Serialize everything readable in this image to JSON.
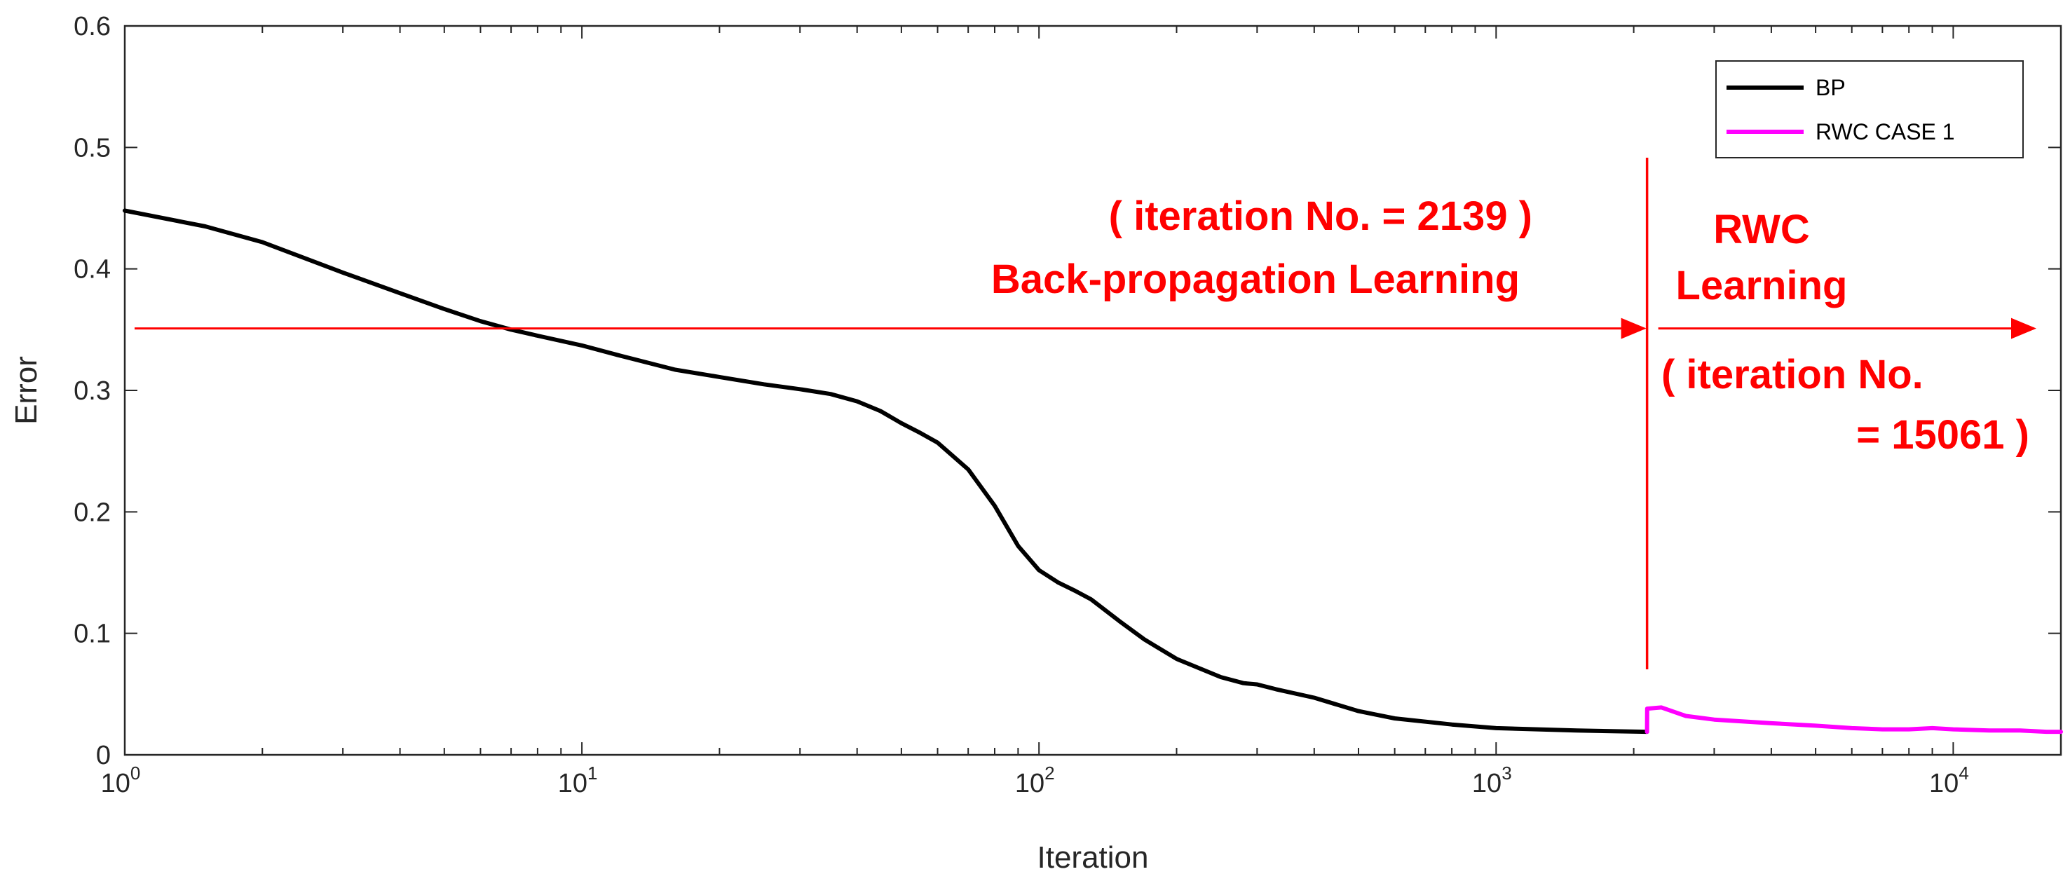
{
  "chart_data": {
    "type": "line",
    "xlabel": "Iteration",
    "ylabel": "Error",
    "xscale": "log",
    "xlim": [
      1,
      17200
    ],
    "ylim": [
      0,
      0.6
    ],
    "yticks": [
      "0",
      "0.1",
      "0.2",
      "0.3",
      "0.4",
      "0.5",
      "0.6"
    ],
    "xticks": [
      {
        "value": 1,
        "base": "10",
        "exp": "0"
      },
      {
        "value": 10,
        "base": "10",
        "exp": "1"
      },
      {
        "value": 100,
        "base": "10",
        "exp": "2"
      },
      {
        "value": 1000,
        "base": "10",
        "exp": "3"
      },
      {
        "value": 10000,
        "base": "10",
        "exp": "4"
      }
    ],
    "grid": false,
    "legend_position": "top-right",
    "series": [
      {
        "name": "BP",
        "color": "#000000",
        "x": [
          1,
          1.5,
          2,
          3,
          4,
          5,
          6,
          7,
          8,
          10,
          12,
          16,
          20,
          25,
          30,
          35,
          40,
          45,
          50,
          55,
          60,
          70,
          80,
          90,
          100,
          110,
          120,
          130,
          150,
          170,
          200,
          250,
          280,
          300,
          330,
          400,
          500,
          600,
          800,
          1000,
          1500,
          2139
        ],
        "values": [
          0.448,
          0.435,
          0.422,
          0.397,
          0.38,
          0.367,
          0.357,
          0.35,
          0.345,
          0.337,
          0.329,
          0.317,
          0.311,
          0.305,
          0.301,
          0.297,
          0.291,
          0.283,
          0.273,
          0.265,
          0.257,
          0.235,
          0.205,
          0.172,
          0.152,
          0.142,
          0.135,
          0.128,
          0.11,
          0.095,
          0.079,
          0.064,
          0.059,
          0.058,
          0.054,
          0.047,
          0.036,
          0.03,
          0.025,
          0.022,
          0.02,
          0.019
        ]
      },
      {
        "name": "RWC CASE 1",
        "color": "#ff00ff",
        "x": [
          2139,
          2140,
          2300,
          2600,
          3000,
          4000,
          5000,
          6000,
          7000,
          8000,
          9000,
          10000,
          12000,
          14000,
          16000,
          17200
        ],
        "values": [
          0.019,
          0.038,
          0.039,
          0.032,
          0.029,
          0.026,
          0.024,
          0.022,
          0.021,
          0.021,
          0.022,
          0.021,
          0.02,
          0.02,
          0.019,
          0.019
        ]
      }
    ],
    "annotations": {
      "bp_line1": "( iteration No. = 2139 )",
      "bp_line2": "Back-propagation Learning",
      "rwc_line1": "RWC",
      "rwc_line2": "Learning",
      "rwc_line3": "( iteration No.",
      "rwc_line4": "= 15061 )",
      "color": "#ff0000",
      "divider_x": 2139,
      "arrow_y": 0.351
    }
  }
}
